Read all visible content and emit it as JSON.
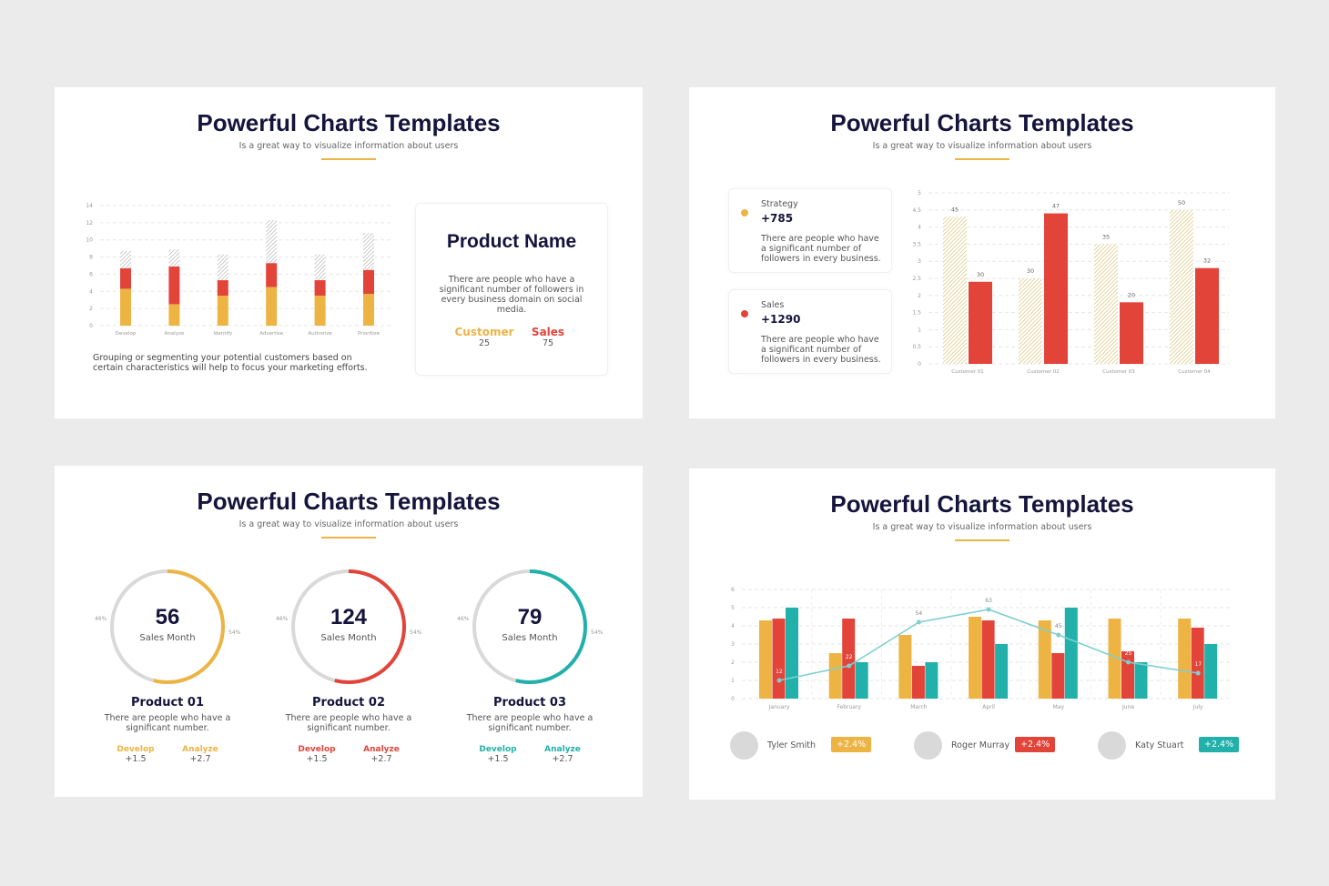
{
  "colors": {
    "yellow": "#edb443",
    "red": "#e2443a",
    "teal": "#21b1aa",
    "navy": "#14143c",
    "gray": "#d9d9d9"
  },
  "slides": [
    {
      "title": "Powerful Charts Templates",
      "subtitle": "Is a great way to visualize information about users",
      "footer": "Grouping or segmenting your potential customers based on certain characteristics will help to focus your marketing efforts.",
      "card": {
        "title": "Product Name",
        "text": "There are people who have a significant number of followers in every business domain on social media.",
        "stats": [
          {
            "label": "Customer",
            "value": "25"
          },
          {
            "label": "Sales",
            "value": "75"
          }
        ]
      }
    },
    {
      "title": "Powerful Charts Templates",
      "subtitle": "Is a great way to visualize information about users",
      "cards": [
        {
          "label": "Strategy",
          "value": "+785",
          "text": "There are people who have a significant number of followers in every business.",
          "color": "#edb443"
        },
        {
          "label": "Sales",
          "value": "+1290",
          "text": "There are people who have a significant number of followers in every business.",
          "color": "#e2443a"
        }
      ]
    },
    {
      "title": "Powerful Charts Templates",
      "subtitle": "Is a great way to visualize information about users",
      "products": [
        {
          "value": "56",
          "unit": "Sales Month",
          "left_pct": "46%",
          "right_pct": "54%",
          "percent": 54,
          "color": "#edb443",
          "name": "Product 01",
          "text": "There are people who have a significant number.",
          "stats": [
            {
              "label": "Develop",
              "value": "+1.5"
            },
            {
              "label": "Analyze",
              "value": "+2.7"
            }
          ]
        },
        {
          "value": "124",
          "unit": "Sales Month",
          "left_pct": "46%",
          "right_pct": "54%",
          "percent": 54,
          "color": "#e2443a",
          "name": "Product 02",
          "text": "There are people who have a significant number.",
          "stats": [
            {
              "label": "Develop",
              "value": "+1.5"
            },
            {
              "label": "Analyze",
              "value": "+2.7"
            }
          ]
        },
        {
          "value": "79",
          "unit": "Sales Month",
          "left_pct": "46%",
          "right_pct": "54%",
          "percent": 54,
          "color": "#21b1aa",
          "name": "Product 03",
          "text": "There are people who have a significant number.",
          "stats": [
            {
              "label": "Develop",
              "value": "+1.5"
            },
            {
              "label": "Analyze",
              "value": "+2.7"
            }
          ]
        }
      ]
    },
    {
      "title": "Powerful Charts Templates",
      "subtitle": "Is a great way to visualize information about users",
      "people": [
        {
          "name": "Tyler Smith",
          "change": "+2.4%",
          "color": "#edb443"
        },
        {
          "name": "Roger Murray",
          "change": "+2.4%",
          "color": "#e2443a"
        },
        {
          "name": "Katy Stuart",
          "change": "+2.4%",
          "color": "#21b1aa"
        }
      ]
    }
  ],
  "chart_data": [
    {
      "type": "bar",
      "stacked": true,
      "categories": [
        "Develop",
        "Analyze",
        "Identify",
        "Advertise",
        "Authorize",
        "Prioritize"
      ],
      "series": [
        {
          "values": [
            4.3,
            2.5,
            3.5,
            4.5,
            3.5,
            3.7
          ],
          "color": "#edb443"
        },
        {
          "values": [
            2.4,
            4.4,
            1.8,
            2.8,
            1.8,
            2.8
          ],
          "color": "#e2443a"
        },
        {
          "values": [
            2,
            2,
            3,
            5,
            3,
            4.3
          ],
          "color": "hatched-gray"
        }
      ],
      "yticks": [
        0,
        2,
        4,
        6,
        8,
        10,
        12,
        14
      ],
      "ylim": [
        0,
        14
      ],
      "grid": true
    },
    {
      "type": "bar",
      "categories": [
        "Customer 01",
        "Customer 02",
        "Customer 03",
        "Customer 04"
      ],
      "series": [
        {
          "values": [
            4.3,
            2.5,
            3.5,
            4.5
          ],
          "labels": [
            "45",
            "30",
            "35",
            "50"
          ],
          "color": "hatched-yellow"
        },
        {
          "values": [
            2.4,
            4.4,
            1.8,
            2.8
          ],
          "labels": [
            "30",
            "47",
            "20",
            "32"
          ],
          "color": "#e2443a"
        }
      ],
      "yticks": [
        "0",
        "0.5",
        "1",
        "1.5",
        "2",
        "2.5",
        "3",
        "3.5",
        "4",
        "4.5",
        "5"
      ],
      "ylim": [
        0,
        5
      ],
      "grid": true
    },
    {
      "type": "bar",
      "categories": [
        "January",
        "February",
        "March",
        "April",
        "May",
        "June",
        "July"
      ],
      "series": [
        {
          "values": [
            4.3,
            2.5,
            3.5,
            4.5,
            4.3,
            4.4,
            4.4
          ],
          "color": "#edb443"
        },
        {
          "values": [
            4.4,
            4.4,
            1.8,
            4.3,
            2.5,
            2.6,
            3.9
          ],
          "color": "#e2443a"
        },
        {
          "values": [
            5,
            2,
            2,
            3,
            5,
            2,
            3
          ],
          "color": "#21b1aa"
        }
      ],
      "line": {
        "values": [
          1,
          1.8,
          4.2,
          4.9,
          3.5,
          2,
          1.4
        ],
        "labels": [
          "12",
          "22",
          "54",
          "63",
          "45",
          "25",
          "17"
        ],
        "color": "#7fcfcf"
      },
      "yticks": [
        0,
        1,
        2,
        3,
        4,
        5,
        6
      ],
      "ylim": [
        0,
        6
      ],
      "grid": true
    }
  ]
}
